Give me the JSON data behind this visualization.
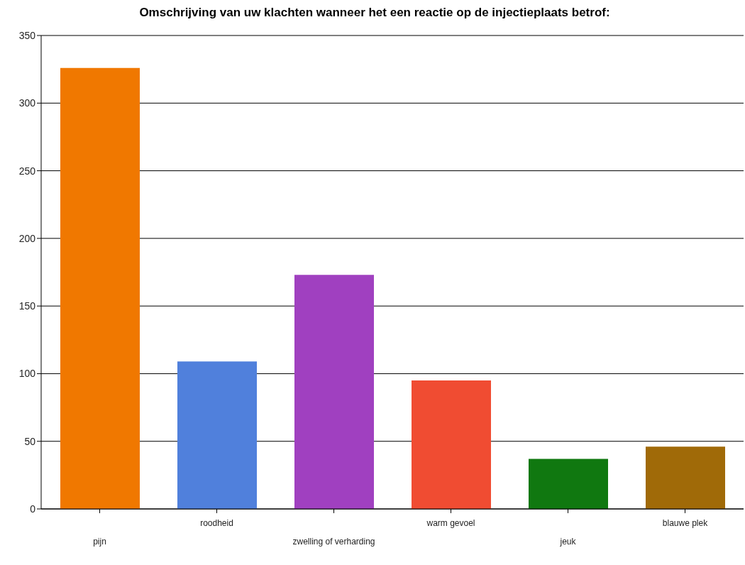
{
  "chart_data": {
    "type": "bar",
    "title": "Omschrijving van uw klachten wanneer het een reactie op de injectieplaats betrof:",
    "categories": [
      "pijn",
      "roodheid",
      "zwelling of verharding",
      "warm gevoel",
      "jeuk",
      "blauwe plek"
    ],
    "values": [
      326,
      109,
      173,
      95,
      37,
      46
    ],
    "colors": [
      "#f07800",
      "#5080dc",
      "#a040c0",
      "#f04c32",
      "#107810",
      "#a06a08"
    ],
    "ylim": [
      0,
      350
    ],
    "yticks": [
      0,
      50,
      100,
      150,
      200,
      250,
      300,
      350
    ],
    "grid": "y"
  }
}
